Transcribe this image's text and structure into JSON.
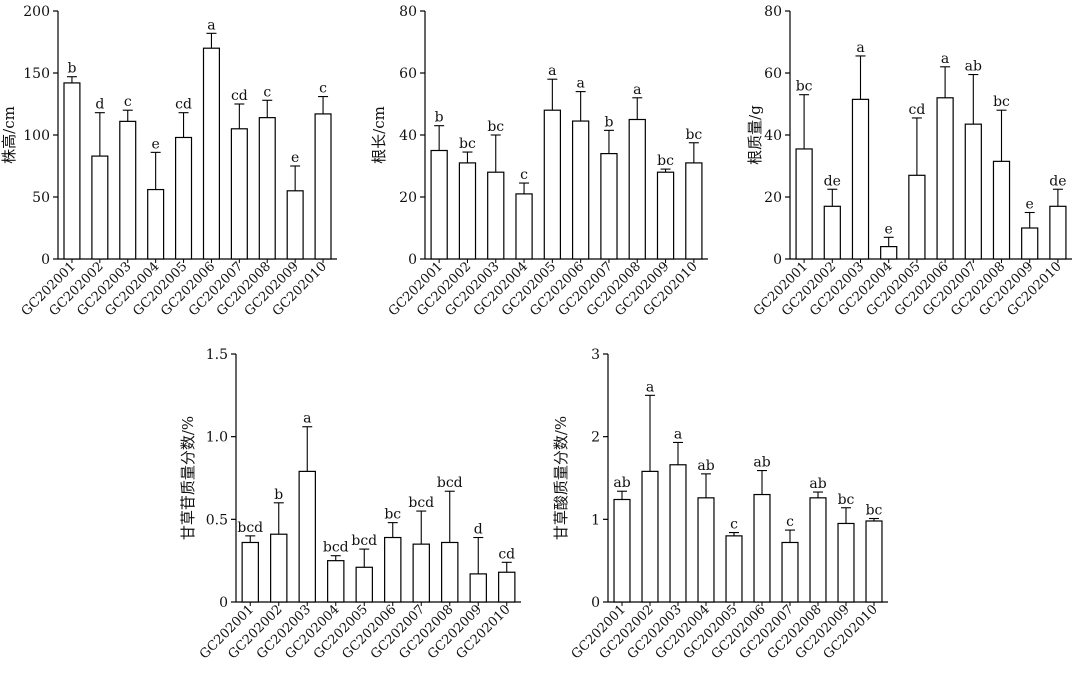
{
  "categories": [
    "GC202001",
    "GC202002",
    "GC202003",
    "GC202004",
    "GC202005",
    "GC202006",
    "GC202007",
    "GC202008",
    "GC202009",
    "GC202010"
  ],
  "chart_data": [
    {
      "type": "bar",
      "ylabel": "株高/cm",
      "ylim": [
        0,
        200
      ],
      "yticks": [
        0,
        50,
        100,
        150,
        200
      ],
      "categories": [
        "GC202001",
        "GC202002",
        "GC202003",
        "GC202004",
        "GC202005",
        "GC202006",
        "GC202007",
        "GC202008",
        "GC202009",
        "GC202010"
      ],
      "values": [
        142,
        83,
        111,
        56,
        98,
        170,
        105,
        114,
        55,
        117
      ],
      "errors": [
        5,
        35,
        9,
        30,
        20,
        12,
        20,
        14,
        20,
        14
      ],
      "letters": [
        "b",
        "d",
        "c",
        "e",
        "cd",
        "a",
        "cd",
        "c",
        "e",
        "c"
      ]
    },
    {
      "type": "bar",
      "ylabel": "根长/cm",
      "ylim": [
        0,
        80
      ],
      "yticks": [
        0,
        20,
        40,
        60,
        80
      ],
      "categories": [
        "GC202001",
        "GC202002",
        "GC202003",
        "GC202004",
        "GC202005",
        "GC202006",
        "GC202007",
        "GC202008",
        "GC202009",
        "GC202010"
      ],
      "values": [
        35,
        31,
        28,
        21,
        48,
        44.5,
        34,
        45,
        28,
        31
      ],
      "errors": [
        8,
        3.5,
        12,
        3.5,
        10,
        9.5,
        7.5,
        7,
        1,
        6.5
      ],
      "letters": [
        "b",
        "bc",
        "bc",
        "c",
        "a",
        "a",
        "b",
        "a",
        "bc",
        "bc"
      ]
    },
    {
      "type": "bar",
      "ylabel": "根质量/g",
      "ylim": [
        0,
        80
      ],
      "yticks": [
        0,
        20,
        40,
        60,
        80
      ],
      "categories": [
        "GC202001",
        "GC202002",
        "GC202003",
        "GC202004",
        "GC202005",
        "GC202006",
        "GC202007",
        "GC202008",
        "GC202009",
        "GC202010"
      ],
      "values": [
        35.5,
        17,
        51.5,
        4,
        27,
        52,
        43.5,
        31.5,
        10,
        17
      ],
      "errors": [
        17.5,
        5.5,
        14,
        3,
        18.5,
        10,
        16,
        16.5,
        5,
        5.5
      ],
      "letters": [
        "bc",
        "de",
        "a",
        "e",
        "cd",
        "a",
        "ab",
        "bc",
        "e",
        "de"
      ]
    },
    {
      "type": "bar",
      "ylabel": "甘草苷质量分数/%",
      "ylim": [
        0,
        1.5
      ],
      "yticks": [
        "0",
        "0.5",
        "1.0",
        "1.5"
      ],
      "categories": [
        "GC202001",
        "GC202002",
        "GC202003",
        "GC202004",
        "GC202005",
        "GC202006",
        "GC202007",
        "GC202008",
        "GC202009",
        "GC202010"
      ],
      "values": [
        0.36,
        0.41,
        0.79,
        0.25,
        0.21,
        0.39,
        0.35,
        0.36,
        0.17,
        0.18
      ],
      "errors": [
        0.04,
        0.19,
        0.27,
        0.03,
        0.11,
        0.09,
        0.2,
        0.31,
        0.22,
        0.06
      ],
      "letters": [
        "bcd",
        "b",
        "a",
        "bcd",
        "bcd",
        "bc",
        "bcd",
        "bcd",
        "d",
        "cd"
      ]
    },
    {
      "type": "bar",
      "ylabel": "甘草酸质量分数/%",
      "ylim": [
        0,
        3
      ],
      "yticks": [
        0,
        1,
        2,
        3
      ],
      "categories": [
        "GC202001",
        "GC202002",
        "GC202003",
        "GC202004",
        "GC202005",
        "GC202006",
        "GC202007",
        "GC202008",
        "GC202009",
        "GC202010"
      ],
      "values": [
        1.24,
        1.58,
        1.66,
        1.26,
        0.8,
        1.3,
        0.72,
        1.26,
        0.95,
        0.98
      ],
      "errors": [
        0.1,
        0.92,
        0.27,
        0.29,
        0.04,
        0.29,
        0.15,
        0.07,
        0.19,
        0.03
      ],
      "letters": [
        "ab",
        "a",
        "a",
        "ab",
        "c",
        "ab",
        "c",
        "ab",
        "bc",
        "bc"
      ]
    }
  ]
}
